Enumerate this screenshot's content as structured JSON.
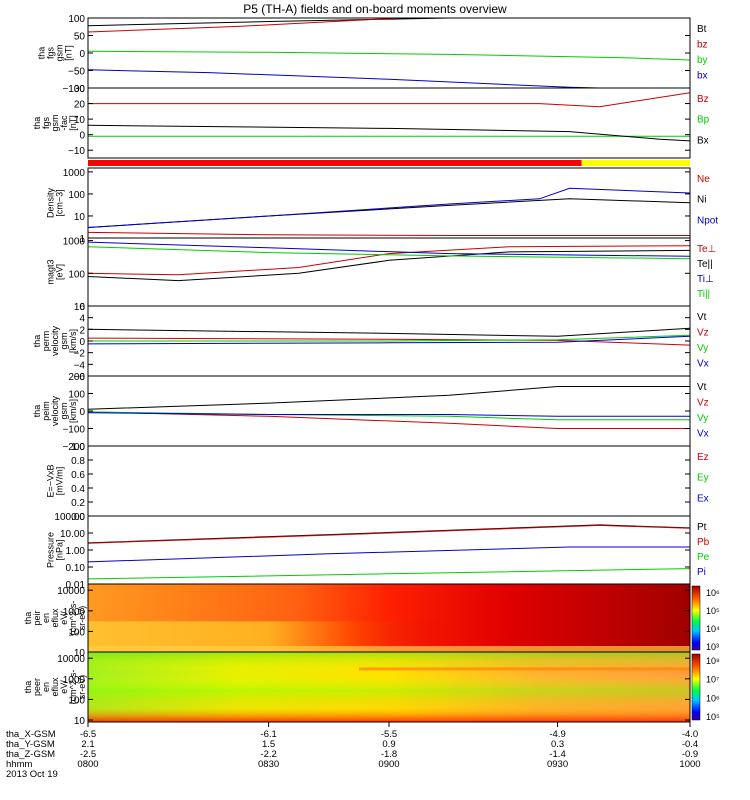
{
  "title": "P5 (TH-A) fields and on-board moments overview",
  "footer": {
    "rows": [
      {
        "label": "tha_X-GSM",
        "values": [
          "-6.5",
          "-6.1",
          "-5.5",
          "-4.9",
          "-4.0"
        ]
      },
      {
        "label": "tha_Y-GSM",
        "values": [
          "2.1",
          "1.5",
          "0.9",
          "0.3",
          "-0.4"
        ]
      },
      {
        "label": "tha_Z-GSM",
        "values": [
          "-2.5",
          "-2.2",
          "-1.8",
          "-1.4",
          "-0.9"
        ]
      },
      {
        "label": "hhmm",
        "values": [
          "0800",
          "0830",
          "0900",
          "0930",
          "1000"
        ]
      }
    ],
    "date": "2013 Oct 19"
  },
  "colors": {
    "black": "#000000",
    "red": "#cc0000",
    "green": "#00cc00",
    "blue": "#0000cc",
    "flag_red": "#ff0000",
    "flag_yellow": "#ffff00"
  },
  "chart_data": [
    {
      "type": "line",
      "id": "fgs_gsm",
      "ylabel": [
        "tha",
        "fgs",
        "gsm",
        "[nT]"
      ],
      "ylim": [
        -100,
        100
      ],
      "yticks": [
        -100,
        -50,
        0,
        50,
        100
      ],
      "tick_labels": [
        "−100",
        "−50",
        "0",
        "50",
        "100"
      ],
      "series": [
        {
          "name": "Bt",
          "color": "#000000",
          "x": [
            0,
            0.3,
            0.6,
            1.0
          ],
          "y": [
            78,
            90,
            100,
            100
          ]
        },
        {
          "name": "bz",
          "color": "#cc0000",
          "x": [
            0,
            0.25,
            0.5,
            0.52
          ],
          "y": [
            60,
            76,
            98,
            100
          ]
        },
        {
          "name": "by",
          "color": "#00cc00",
          "x": [
            0,
            0.3,
            0.6,
            0.9,
            1.0
          ],
          "y": [
            5,
            2,
            -4,
            -14,
            -20
          ]
        },
        {
          "name": "bx",
          "color": "#0000cc",
          "x": [
            0,
            0.2,
            0.5,
            0.8,
            0.85,
            1.0
          ],
          "y": [
            -48,
            -56,
            -75,
            -98,
            -100,
            -100
          ]
        }
      ]
    },
    {
      "type": "line",
      "id": "fgs_fac",
      "ylabel": [
        "tha",
        "fgs",
        "gsm",
        "-fac",
        "[nT]"
      ],
      "ylim": [
        -15,
        30
      ],
      "yticks": [
        -10,
        0,
        10,
        20,
        30
      ],
      "tick_labels": [
        "−10",
        "0",
        "10",
        "20",
        "30"
      ],
      "series": [
        {
          "name": "Bz",
          "color": "#cc0000",
          "x": [
            0,
            0.4,
            0.75,
            0.85,
            0.9,
            1.0
          ],
          "y": [
            20,
            20,
            20,
            18,
            21,
            27
          ]
        },
        {
          "name": "Bp",
          "color": "#00cc00",
          "x": [
            0,
            0.5,
            1.0
          ],
          "y": [
            -1,
            -1,
            -1
          ]
        },
        {
          "name": "Bx",
          "color": "#000000",
          "x": [
            0,
            0.5,
            0.8,
            0.95,
            1.0
          ],
          "y": [
            6,
            4,
            2,
            -3,
            -4
          ]
        }
      ]
    },
    {
      "type": "line",
      "id": "density",
      "ylabel": [
        "Density",
        "[cm−3]"
      ],
      "log": true,
      "ylim": [
        1,
        1500
      ],
      "yticks": [
        1,
        10,
        100,
        1000
      ],
      "tick_labels": [
        "1",
        "10",
        "100",
        "1000"
      ],
      "series": [
        {
          "name": "Ne",
          "color": "#cc0000",
          "x": [
            0,
            0.3,
            0.6,
            1.0
          ],
          "y": [
            1.8,
            1.4,
            1.3,
            1.3
          ]
        },
        {
          "name": "Ni",
          "color": "#000000",
          "x": [
            0,
            0.3,
            0.6,
            0.8,
            1.0
          ],
          "y": [
            3,
            10,
            30,
            60,
            40
          ]
        },
        {
          "name": "Npot",
          "color": "#0000cc",
          "x": [
            0,
            0.3,
            0.6,
            0.75,
            0.8,
            1.0
          ],
          "y": [
            3,
            10,
            35,
            60,
            180,
            110
          ]
        }
      ]
    },
    {
      "type": "line",
      "id": "magt3",
      "ylabel": [
        "magt3",
        "[eV]"
      ],
      "log": true,
      "ylim": [
        10,
        1200
      ],
      "yticks": [
        10,
        100,
        1000
      ],
      "tick_labels": [
        "10",
        "100",
        "1000"
      ],
      "series": [
        {
          "name": "Te⊥",
          "color": "#cc0000",
          "x": [
            0,
            0.15,
            0.35,
            0.5,
            0.7,
            1.0
          ],
          "y": [
            100,
            90,
            150,
            400,
            650,
            700
          ]
        },
        {
          "name": "Te||",
          "color": "#000000",
          "x": [
            0,
            0.15,
            0.35,
            0.5,
            0.7,
            1.0
          ],
          "y": [
            80,
            60,
            100,
            250,
            450,
            500
          ]
        },
        {
          "name": "Ti⊥",
          "color": "#0000cc",
          "x": [
            0,
            0.3,
            0.6,
            1.0
          ],
          "y": [
            900,
            600,
            400,
            330
          ]
        },
        {
          "name": "Ti||",
          "color": "#00cc00",
          "x": [
            0,
            0.3,
            0.6,
            1.0
          ],
          "y": [
            650,
            430,
            340,
            280
          ]
        }
      ]
    },
    {
      "type": "line",
      "id": "perm_velocity",
      "ylabel": [
        "tha",
        "perm",
        "velocity",
        "gsm",
        "[km/s]"
      ],
      "ylim": [
        -6,
        6
      ],
      "yticks": [
        -6,
        -4,
        -2,
        0,
        2,
        4,
        6
      ],
      "tick_labels": [
        "−6",
        "−4",
        "−2",
        "0",
        "2",
        "4",
        "6"
      ],
      "series": [
        {
          "name": "Vt",
          "color": "#000000",
          "x": [
            0,
            0.5,
            0.78,
            1.0
          ],
          "y": [
            2,
            1.3,
            0.8,
            2.2
          ]
        },
        {
          "name": "Vz",
          "color": "#cc0000",
          "x": [
            0,
            0.5,
            0.78,
            1.0
          ],
          "y": [
            0.5,
            0.3,
            0.1,
            -0.7
          ]
        },
        {
          "name": "Vy",
          "color": "#00cc00",
          "x": [
            0,
            0.5,
            0.78,
            1.0
          ],
          "y": [
            0,
            0,
            0.2,
            1.0
          ]
        },
        {
          "name": "Vx",
          "color": "#0000cc",
          "x": [
            0,
            0.5,
            0.78,
            1.0
          ],
          "y": [
            -0.5,
            -0.3,
            -0.2,
            0.8
          ]
        }
      ]
    },
    {
      "type": "line",
      "id": "peim_velocity",
      "ylabel": [
        "tha",
        "peim",
        "velocity",
        "gsm",
        "[km/s]"
      ],
      "ylim": [
        -200,
        200
      ],
      "yticks": [
        -200,
        -100,
        0,
        100,
        200
      ],
      "tick_labels": [
        "−200",
        "−100",
        "0",
        "100",
        "200"
      ],
      "series": [
        {
          "name": "Vt",
          "color": "#000000",
          "x": [
            0,
            0.3,
            0.6,
            0.78,
            1.0
          ],
          "y": [
            10,
            45,
            90,
            140,
            140
          ]
        },
        {
          "name": "Vz",
          "color": "#cc0000",
          "x": [
            0,
            0.3,
            0.6,
            0.78,
            1.0
          ],
          "y": [
            -5,
            -30,
            -70,
            -100,
            -100
          ]
        },
        {
          "name": "Vy",
          "color": "#00cc00",
          "x": [
            0,
            0.3,
            0.6,
            0.78,
            1.0
          ],
          "y": [
            -5,
            -20,
            -30,
            -50,
            -50
          ]
        },
        {
          "name": "Vx",
          "color": "#0000cc",
          "x": [
            0,
            0.3,
            0.6,
            0.78,
            1.0
          ],
          "y": [
            -10,
            -20,
            -20,
            -30,
            -30
          ]
        }
      ]
    },
    {
      "type": "line",
      "id": "e_vxb",
      "ylabel": [
        "E=−VxB",
        "[mV/m]"
      ],
      "ylim": [
        0,
        1
      ],
      "yticks": [
        0,
        0.2,
        0.4,
        0.6,
        0.8,
        1.0
      ],
      "tick_labels": [
        "0.0",
        "0.2",
        "0.4",
        "0.6",
        "0.8",
        "1.0"
      ],
      "series": [
        {
          "name": "Ez",
          "color": "#cc0000",
          "x": [],
          "y": []
        },
        {
          "name": "Ey",
          "color": "#00cc00",
          "x": [],
          "y": []
        },
        {
          "name": "Ex",
          "color": "#0000cc",
          "x": [],
          "y": []
        }
      ]
    },
    {
      "type": "line",
      "id": "pressure",
      "ylabel": [
        "Pressure",
        "[nPa]"
      ],
      "log": true,
      "ylim": [
        0.01,
        100
      ],
      "yticks": [
        0.01,
        0.1,
        1,
        10,
        100
      ],
      "tick_labels": [
        "0.01",
        "0.10",
        "1.00",
        "10.00",
        "100.00"
      ],
      "series": [
        {
          "name": "Pt",
          "color": "#000000",
          "x": [
            0,
            0.4,
            0.85,
            1.0
          ],
          "y": [
            2.6,
            8,
            30,
            20
          ]
        },
        {
          "name": "Pb",
          "color": "#cc0000",
          "x": [
            0,
            0.4,
            0.85,
            1.0
          ],
          "y": [
            2.5,
            7.5,
            28,
            19
          ]
        },
        {
          "name": "Pe",
          "color": "#00cc00",
          "x": [
            0,
            0.5,
            1.0
          ],
          "y": [
            0.02,
            0.04,
            0.08
          ]
        },
        {
          "name": "Pi",
          "color": "#0000cc",
          "x": [
            0,
            0.4,
            0.8,
            1.0
          ],
          "y": [
            0.2,
            0.6,
            1.5,
            1.5
          ]
        }
      ]
    },
    {
      "type": "heatmap",
      "id": "peir_eflux",
      "ylabel": [
        "tha",
        "peir",
        "en",
        "eflux",
        "eV/",
        "(cm^2-s-",
        "sr-eV)"
      ],
      "log": true,
      "ylim": [
        10,
        20000
      ],
      "yticks": [
        10,
        100,
        1000,
        10000
      ],
      "tick_labels": [
        "10",
        "100",
        "1000",
        "10000"
      ],
      "colorbar_labels": [
        "10⁶",
        "10⁵",
        "10⁴",
        "10³"
      ]
    },
    {
      "type": "heatmap",
      "id": "peer_eflux",
      "ylabel": [
        "tha",
        "peer",
        "en",
        "eflux",
        "eV/",
        "(cm^2-s-",
        "sr-eV)"
      ],
      "log": true,
      "ylim": [
        8,
        20000
      ],
      "yticks": [
        10,
        100,
        1000,
        10000
      ],
      "tick_labels": [
        "10",
        "100",
        "1000",
        "10000"
      ],
      "colorbar_labels": [
        "10⁸",
        "10⁷",
        "10⁶",
        "10⁵"
      ]
    }
  ]
}
